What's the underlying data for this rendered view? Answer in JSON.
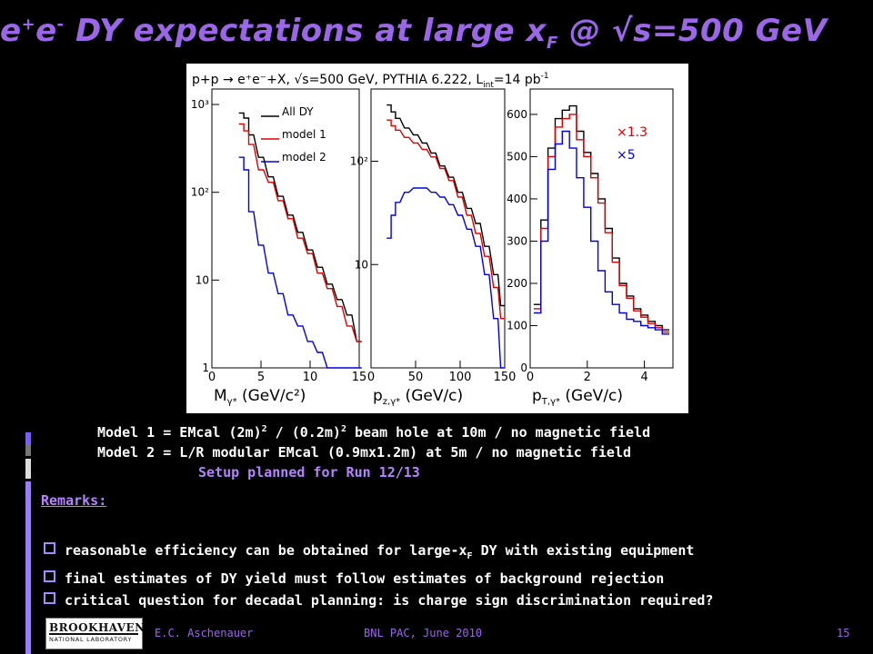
{
  "slide": {
    "title": {
      "part1": "e",
      "sup1": "+",
      "part2": "e",
      "sup2": "-",
      "part3": " DY expectations at large x",
      "sub": "F",
      "part4": " @ √s=500 GeV"
    },
    "plot_header": "p+p → e⁺e⁻+X, √s=500 GeV, PYTHIA 6.222, L",
    "plot_header_sub": "int",
    "plot_header_tail": "=14 pb",
    "plot_header_sup": "-1",
    "models": {
      "m1_a": "Model 1 = EMcal (2m)",
      "m1_sup1": "2",
      "m1_b": " / (0.2m)",
      "m1_sup2": "2",
      "m1_c": " beam hole at 10m / no magnetic field",
      "m2": "Model 2 = L/R modular EMcal (0.9mx1.2m) at 5m / no magnetic field",
      "setup": "Setup planned for Run 12/13"
    },
    "remarks_label": "Remarks:",
    "bullets": {
      "b1_a": "reasonable efficiency can be obtained for large-x",
      "b1_sub": "F",
      "b1_b": " DY with existing equipment",
      "b2": "final estimates of DY yield must follow estimates of background rejection",
      "b3": "critical question for decadal planning:  is charge sign discrimination required?"
    },
    "footer": {
      "author": "E.C. Aschenauer",
      "event": "BNL PAC, June 2010",
      "page": "15",
      "logo_line1": "BROOKHAVEN",
      "logo_line2": "NATIONAL LABORATORY"
    },
    "colors": {
      "title": "#9b66e8",
      "accent": "#b583ff",
      "all_dy": "#000000",
      "model1": "#e00000",
      "model2": "#0000e0"
    }
  },
  "chart_data": [
    {
      "type": "line",
      "xlabel": "M",
      "xlabel_sub": "γ*",
      "xlabel_unit": "(GeV/c²)",
      "x_ticks": [
        "0",
        "5",
        "10",
        "15"
      ],
      "y_ticks": [
        "1",
        "10",
        "10²",
        "10³"
      ],
      "y_scale": "log",
      "xlim": [
        0,
        15
      ],
      "ylim": [
        1,
        1500
      ],
      "legend": [
        "All DY",
        "model 1",
        "model 2"
      ],
      "legend_position": "top-right",
      "x": [
        3,
        3.5,
        4,
        5,
        6,
        7,
        8,
        9,
        10,
        11,
        12,
        13,
        14,
        15
      ],
      "series": [
        {
          "name": "All DY",
          "values": [
            800,
            700,
            450,
            250,
            150,
            90,
            55,
            35,
            22,
            14,
            9,
            6,
            4,
            2
          ]
        },
        {
          "name": "model 1",
          "values": [
            600,
            500,
            350,
            180,
            130,
            80,
            50,
            30,
            20,
            12,
            8,
            5,
            3,
            2
          ]
        },
        {
          "name": "model 2",
          "values": [
            250,
            180,
            60,
            25,
            12,
            7,
            4,
            3,
            2,
            1.5,
            1,
            1,
            1,
            1
          ]
        }
      ]
    },
    {
      "type": "line",
      "xlabel": "p",
      "xlabel_sub": "z,γ*",
      "xlabel_unit": "(GeV/c)",
      "x_ticks": [
        "0",
        "50",
        "100",
        "150"
      ],
      "y_ticks": [
        "10",
        "10²"
      ],
      "y_scale": "log",
      "xlim": [
        0,
        150
      ],
      "ylim": [
        1,
        500
      ],
      "x": [
        20,
        25,
        30,
        40,
        50,
        60,
        70,
        80,
        90,
        100,
        110,
        120,
        130,
        140,
        148
      ],
      "series": [
        {
          "name": "All DY",
          "values": [
            350,
            300,
            260,
            210,
            180,
            150,
            120,
            90,
            70,
            50,
            35,
            25,
            15,
            8,
            4
          ]
        },
        {
          "name": "model 1",
          "values": [
            250,
            220,
            200,
            170,
            150,
            130,
            110,
            85,
            65,
            45,
            30,
            20,
            12,
            6,
            3
          ]
        },
        {
          "name": "model 2",
          "values": [
            18,
            30,
            40,
            50,
            55,
            55,
            50,
            45,
            38,
            30,
            22,
            15,
            8,
            3,
            1
          ]
        }
      ]
    },
    {
      "type": "line",
      "xlabel": "p",
      "xlabel_sub": "T,γ*",
      "xlabel_unit": "(GeV/c)",
      "x_ticks": [
        "0",
        "2",
        "4"
      ],
      "y_ticks": [
        "0",
        "100",
        "200",
        "300",
        "400",
        "500",
        "600"
      ],
      "y_scale": "linear",
      "xlim": [
        0,
        5
      ],
      "ylim": [
        0,
        660
      ],
      "legend": [
        "×1.3",
        "×5"
      ],
      "legend_position": "top-right",
      "x": [
        0.25,
        0.5,
        0.75,
        1.0,
        1.25,
        1.5,
        1.75,
        2.0,
        2.25,
        2.5,
        2.75,
        3.0,
        3.25,
        3.5,
        3.75,
        4.0,
        4.25,
        4.5,
        4.75
      ],
      "series": [
        {
          "name": "All DY",
          "values": [
            150,
            350,
            520,
            590,
            610,
            620,
            560,
            510,
            460,
            400,
            330,
            260,
            200,
            170,
            140,
            125,
            110,
            100,
            90
          ]
        },
        {
          "name": "×1.3",
          "values": [
            140,
            330,
            500,
            570,
            590,
            600,
            540,
            500,
            450,
            390,
            320,
            250,
            195,
            165,
            135,
            120,
            105,
            95,
            85
          ]
        },
        {
          "name": "×5",
          "values": [
            130,
            300,
            470,
            530,
            560,
            520,
            450,
            380,
            300,
            230,
            180,
            150,
            130,
            115,
            110,
            100,
            95,
            90,
            80
          ]
        }
      ]
    }
  ]
}
